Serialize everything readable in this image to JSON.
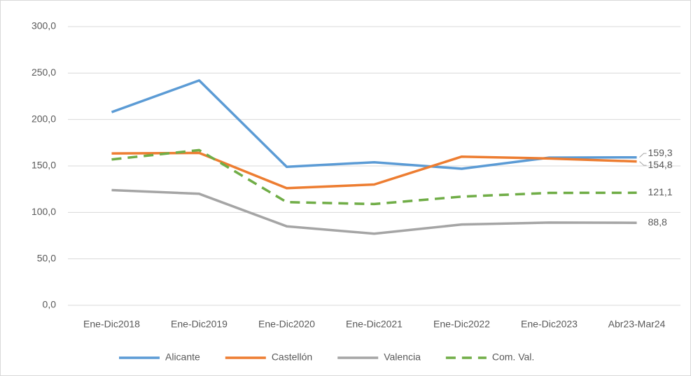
{
  "chart_data": {
    "type": "line",
    "categories": [
      "Ene-Dic2018",
      "Ene-Dic2019",
      "Ene-Dic2020",
      "Ene-Dic2021",
      "Ene-Dic2022",
      "Ene-Dic2023",
      "Abr23-Mar24"
    ],
    "series": [
      {
        "name": "Alicante",
        "color": "#5b9bd5",
        "dash": false,
        "values": [
          208,
          242,
          149,
          154,
          147,
          159,
          159.3
        ],
        "value_labels": [
          null,
          null,
          null,
          null,
          null,
          null,
          "159,3"
        ]
      },
      {
        "name": "Castellón",
        "color": "#ed7d31",
        "dash": false,
        "values": [
          163.5,
          164,
          126,
          130,
          160,
          158,
          154.8
        ],
        "value_labels": [
          null,
          null,
          null,
          null,
          null,
          null,
          "154,8"
        ]
      },
      {
        "name": "Valencia",
        "color": "#a5a5a5",
        "dash": false,
        "values": [
          124,
          120,
          85,
          77,
          87,
          89,
          88.8
        ],
        "value_labels": [
          null,
          null,
          null,
          null,
          null,
          null,
          "88,8"
        ]
      },
      {
        "name": "Com. Val.",
        "color": "#70ad47",
        "dash": true,
        "values": [
          157,
          167,
          111,
          109,
          117,
          121,
          121.1
        ],
        "value_labels": [
          null,
          null,
          null,
          null,
          null,
          null,
          "121,1"
        ]
      }
    ],
    "ylim": [
      0,
      300
    ],
    "yticks": [
      {
        "value": 0,
        "label": "0,0"
      },
      {
        "value": 50,
        "label": "50,0"
      },
      {
        "value": 100,
        "label": "100,0"
      },
      {
        "value": 150,
        "label": "150,0"
      },
      {
        "value": 200,
        "label": "200,0"
      },
      {
        "value": 250,
        "label": "250,0"
      },
      {
        "value": 300,
        "label": "300,0"
      }
    ],
    "grid": true,
    "legend": "bottom"
  }
}
